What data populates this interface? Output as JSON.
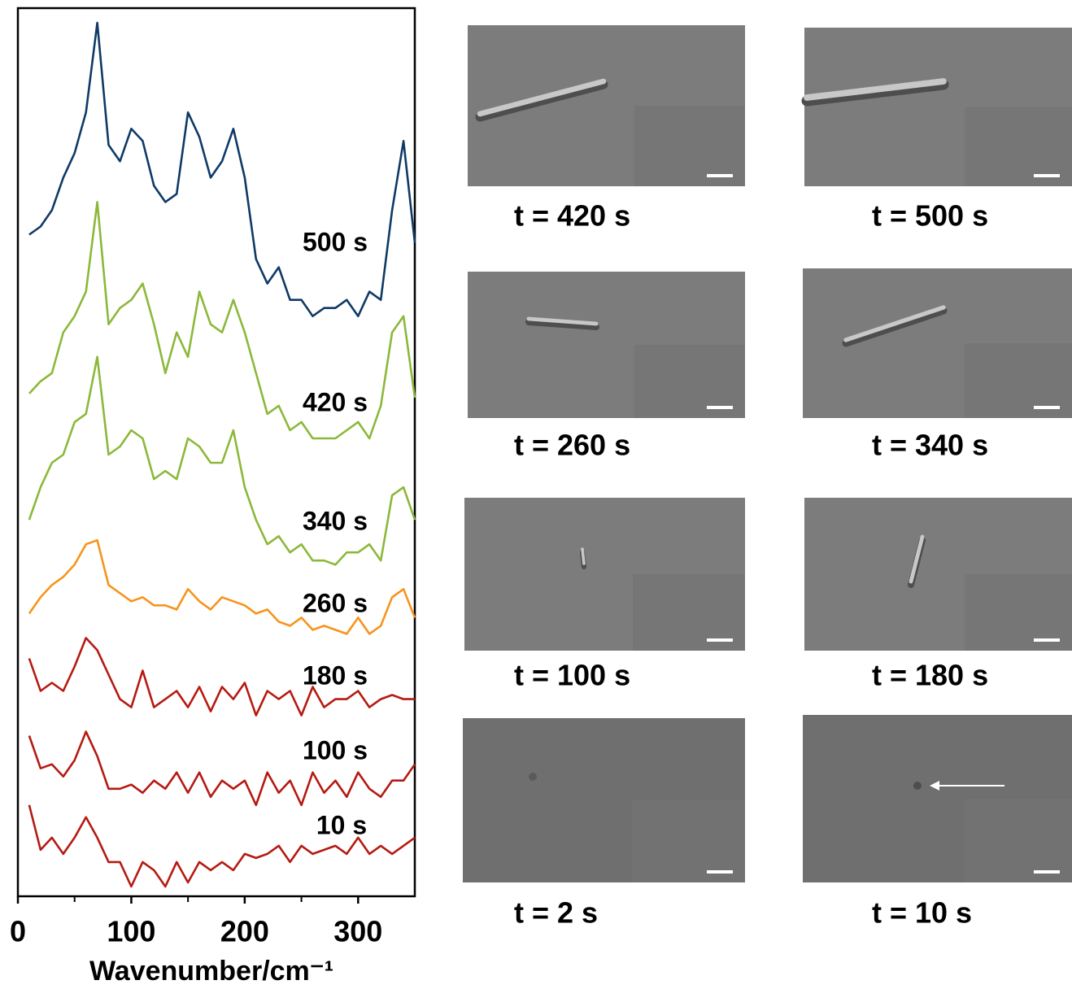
{
  "chart_data": {
    "type": "line",
    "x_label": "Wavenumber/cm⁻¹",
    "x": [
      10,
      20,
      30,
      40,
      50,
      60,
      70,
      80,
      90,
      100,
      110,
      120,
      130,
      140,
      150,
      160,
      170,
      180,
      190,
      200,
      210,
      220,
      230,
      240,
      250,
      260,
      270,
      280,
      290,
      300,
      310,
      320,
      330,
      340,
      350
    ],
    "xlim": [
      0,
      350
    ],
    "xticks": [
      0,
      100,
      200,
      300
    ],
    "ylim": [
      0,
      109
    ],
    "series": [
      {
        "name": "500 s",
        "color": "#0f3a66",
        "values": [
          81.2,
          82.2,
          84.2,
          88.2,
          91.2,
          96.2,
          107.2,
          92.2,
          90.2,
          94.2,
          92.7,
          87.2,
          85.2,
          86.2,
          96.2,
          93.2,
          88.2,
          90.2,
          94.2,
          88.2,
          78.2,
          75.2,
          77.2,
          73.2,
          73.2,
          71.2,
          72.2,
          72.2,
          73.2,
          71.2,
          74.2,
          73.2,
          84.2,
          92.7,
          80.2
        ]
      },
      {
        "name": "420 s",
        "color": "#8cb83a",
        "values": [
          61.7,
          63.2,
          64.2,
          69.2,
          71.2,
          74.2,
          85.2,
          70.2,
          72.2,
          73.2,
          75.2,
          70.2,
          64.2,
          69.2,
          66.2,
          74.2,
          70.2,
          69.2,
          73.2,
          69.2,
          64.2,
          59.2,
          60.2,
          57.2,
          58.2,
          56.2,
          56.2,
          56.2,
          57.2,
          58.2,
          56.2,
          60.2,
          69.2,
          71.2,
          61.2
        ]
      },
      {
        "name": "340 s",
        "color": "#8cb83a",
        "values": [
          46.2,
          50.2,
          53.2,
          54.2,
          58.2,
          59.2,
          66.2,
          54.2,
          55.2,
          57.2,
          56.2,
          51.2,
          52.2,
          51.2,
          56.2,
          55.2,
          53.2,
          53.2,
          57.2,
          50.2,
          46.2,
          43.2,
          44.2,
          42.2,
          43.2,
          41.2,
          41.2,
          40.7,
          42.2,
          42.2,
          43.2,
          41.2,
          49.2,
          50.2,
          46.2
        ]
      },
      {
        "name": "260 s",
        "color": "#f7941d",
        "values": [
          34.7,
          36.7,
          38.2,
          39.2,
          40.7,
          43.2,
          43.7,
          38.2,
          37.2,
          36.2,
          36.7,
          35.7,
          35.7,
          35.2,
          37.7,
          36.2,
          35.2,
          36.7,
          36.2,
          35.7,
          34.7,
          35.2,
          33.7,
          33.2,
          34.2,
          32.7,
          33.2,
          32.7,
          32.2,
          34.2,
          32.2,
          33.2,
          36.7,
          37.7,
          34.2
        ]
      },
      {
        "name": "180 s",
        "color": "#b51a12",
        "values": [
          29.2,
          25.2,
          26.2,
          25.2,
          28.2,
          31.7,
          30.2,
          27.2,
          24.2,
          23.2,
          27.7,
          23.2,
          24.2,
          25.2,
          23.2,
          25.7,
          22.7,
          25.7,
          24.2,
          26.2,
          22.2,
          25.2,
          24.2,
          25.2,
          22.2,
          25.7,
          23.2,
          24.2,
          24.2,
          25.2,
          23.2,
          24.2,
          24.7,
          24.2,
          24.2
        ]
      },
      {
        "name": "100 s",
        "color": "#b51a12",
        "values": [
          19.7,
          15.7,
          16.2,
          14.7,
          16.7,
          20.2,
          17.2,
          13.2,
          13.2,
          13.7,
          12.7,
          14.2,
          13.2,
          15.2,
          12.7,
          15.2,
          12.2,
          14.2,
          13.2,
          14.2,
          11.2,
          15.2,
          12.7,
          14.2,
          11.2,
          15.2,
          12.7,
          14.2,
          12.2,
          15.2,
          13.2,
          12.2,
          14.2,
          14.2,
          16.2
        ]
      },
      {
        "name": "10 s",
        "color": "#b51a12",
        "values": [
          11.2,
          5.7,
          7.2,
          5.2,
          7.2,
          9.7,
          7.2,
          4.2,
          4.2,
          1.2,
          4.2,
          3.2,
          1.2,
          4.2,
          1.7,
          4.2,
          3.2,
          4.2,
          3.2,
          5.2,
          4.7,
          5.2,
          6.2,
          4.2,
          6.2,
          5.2,
          5.7,
          6.2,
          5.2,
          7.2,
          5.2,
          6.2,
          5.2,
          6.2,
          7.2
        ]
      }
    ]
  },
  "panels": [
    {
      "label": "t = 420 s"
    },
    {
      "label": "t = 500 s"
    },
    {
      "label": "t = 260 s"
    },
    {
      "label": "t = 340 s"
    },
    {
      "label": "t = 100 s"
    },
    {
      "label": "t = 180 s"
    },
    {
      "label": "t = 2 s"
    },
    {
      "label": "t = 10 s"
    }
  ]
}
